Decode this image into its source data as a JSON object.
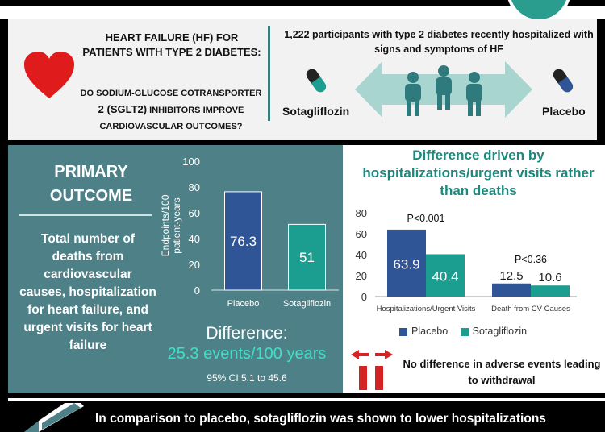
{
  "header": {
    "question_title": "HEART FAILURE (HF) FOR PATIENTS WITH TYPE 2 DIABETES:",
    "question_line1": "DO SODIUM-GLUCOSE COTRANSPORTER",
    "question_line2_big": "2 (SGLT2)",
    "question_line2_rest": " INHIBITORS IMPROVE",
    "question_line3": "CARDIOVASCULAR OUTCOMES?",
    "participants": "1,222 participants with type 2 diabetes recently hospitalized with signs and symptoms of HF",
    "arm_left": "Sotagliflozin",
    "arm_right": "Placebo"
  },
  "primary": {
    "title": "PRIMARY OUTCOME",
    "description": "Total number of deaths from cardiovascular causes, hospitalization for heart failure, and urgent visits for heart failure",
    "difference_label": "Difference:",
    "difference_value": "25.3 events/100 years",
    "ci": "95% CI 5.1 to 45.6"
  },
  "secondary": {
    "title": "Difference driven by hospitalizations/urgent visits rather than deaths",
    "adverse_events": "No difference in adverse events leading to withdrawal"
  },
  "conclusion": {
    "text": "In comparison to placebo, sotagliflozin was shown to lower hospitalizations"
  },
  "colors": {
    "placebo": "#2f5597",
    "sotagliflozin": "#1b9e8f",
    "panel": "#4e8087",
    "accent": "#3fe0c8",
    "heart": "#e01b1b"
  },
  "chart_data": [
    {
      "type": "bar",
      "ylabel": "Endpoints/100 patient-years",
      "ylim": [
        0,
        100
      ],
      "yticks": [
        0,
        20,
        40,
        60,
        80,
        100
      ],
      "categories": [
        "Placebo",
        "Sotagliflozin"
      ],
      "values": [
        76.3,
        51
      ],
      "value_labels": [
        "76.3",
        "51"
      ]
    },
    {
      "type": "bar",
      "ylim": [
        0,
        80
      ],
      "yticks": [
        0,
        20,
        40,
        60,
        80
      ],
      "categories": [
        "Hospitalizations/Urgent Visits",
        "Death from CV Causes"
      ],
      "annotations": [
        "P<0.001",
        "P<0.36"
      ],
      "series": [
        {
          "name": "Placebo",
          "values": [
            63.9,
            12.5
          ],
          "labels": [
            "63.9",
            "12.5"
          ]
        },
        {
          "name": "Sotagliflozin",
          "values": [
            40.4,
            10.6
          ],
          "labels": [
            "40.4",
            "10.6"
          ]
        }
      ],
      "legend": "bottom"
    }
  ]
}
